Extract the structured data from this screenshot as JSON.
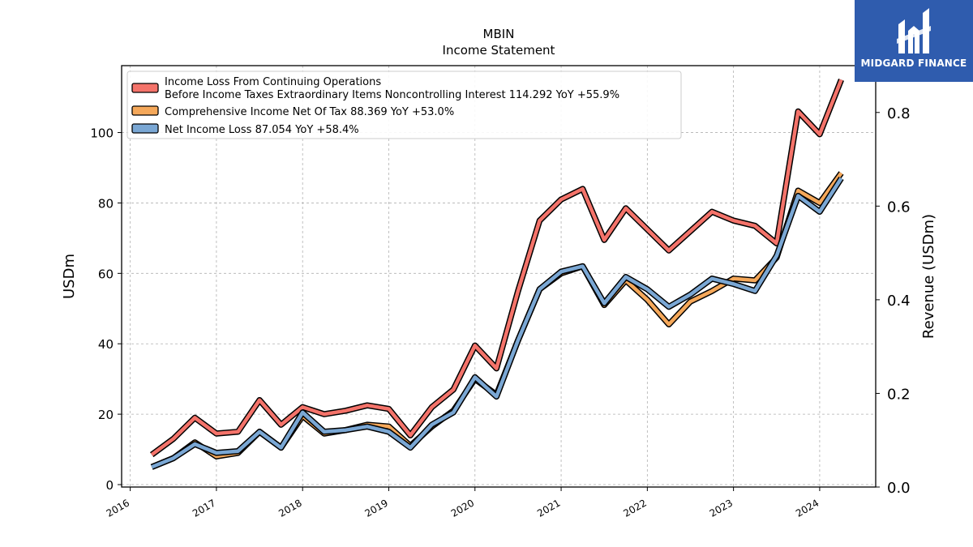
{
  "chart_data": {
    "type": "line",
    "title": "MBIN",
    "subtitle": "Income Statement",
    "ylabel": "USDm",
    "y2label": "Revenue (USDm)",
    "ylim": [
      0,
      119
    ],
    "y2lim": [
      0,
      0.9
    ],
    "yticks": [
      0,
      20,
      40,
      60,
      80,
      100
    ],
    "y2ticks": [
      "0.0",
      "0.2",
      "0.4",
      "0.6",
      "0.8"
    ],
    "xlim": [
      2015.9,
      2024.65
    ],
    "xticks": [
      "2016",
      "2017",
      "2018",
      "2019",
      "2020",
      "2021",
      "2022",
      "2023",
      "2024"
    ],
    "grid": true,
    "legend_position": "upper-left",
    "x": [
      2016.25,
      2016.5,
      2016.75,
      2017.0,
      2017.25,
      2017.5,
      2017.75,
      2018.0,
      2018.25,
      2018.5,
      2018.75,
      2019.0,
      2019.25,
      2019.5,
      2019.75,
      2020.0,
      2020.25,
      2020.5,
      2020.75,
      2021.0,
      2021.25,
      2021.5,
      2021.75,
      2022.0,
      2022.25,
      2022.5,
      2022.75,
      2023.0,
      2023.25,
      2023.5,
      2023.75,
      2024.0,
      2024.25
    ],
    "series": [
      {
        "name": "Income Loss From Continuing Operations",
        "name_line2": "Before Income Taxes Extraordinary Items Noncontrolling Interest  114.292 YoY +55.9%",
        "color": "#f4736a",
        "values": [
          8.5,
          13,
          19,
          14.5,
          15,
          24,
          17,
          22,
          20,
          21,
          22.5,
          21.5,
          14,
          22,
          27,
          39.5,
          33,
          55,
          75,
          81,
          84,
          69.5,
          78.5,
          72.5,
          66.5,
          72,
          77.5,
          75,
          73.5,
          68.5,
          106,
          99.5,
          115
        ]
      },
      {
        "name": "Comprehensive Income Net Of Tax  88.369 YoY +53.0%",
        "color": "#f5a85a",
        "values": [
          5,
          7.5,
          12,
          8,
          9,
          15,
          10.5,
          19.5,
          14.5,
          15.5,
          17,
          16.5,
          11,
          16.5,
          21,
          30,
          25.5,
          41,
          55.5,
          60,
          62,
          51,
          58,
          52.5,
          45.5,
          52,
          55,
          58.5,
          58,
          64.5,
          83.5,
          80,
          88.5
        ]
      },
      {
        "name": "Net Income Loss  87.054 YoY +58.4%",
        "color": "#7aa7d4",
        "values": [
          5,
          7.5,
          11.5,
          9,
          9.5,
          15,
          10.5,
          20.5,
          15,
          15.5,
          16.5,
          15,
          10.5,
          17,
          20.5,
          30.5,
          25,
          41,
          55.5,
          60.5,
          62,
          51.5,
          59,
          55.5,
          50.5,
          54,
          58.5,
          57,
          55,
          65,
          82,
          77.5,
          87
        ]
      }
    ]
  },
  "logo": {
    "text": "MIDGARD FINANCE",
    "icon": "midgard-logo-icon"
  }
}
